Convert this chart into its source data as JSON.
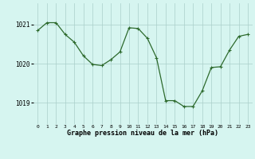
{
  "x": [
    0,
    1,
    2,
    3,
    4,
    5,
    6,
    7,
    8,
    9,
    10,
    11,
    12,
    13,
    14,
    15,
    16,
    17,
    18,
    19,
    20,
    21,
    22,
    23
  ],
  "y": [
    1020.85,
    1021.05,
    1021.05,
    1020.75,
    1020.55,
    1020.2,
    1019.98,
    1019.95,
    1020.1,
    1020.3,
    1020.92,
    1020.9,
    1020.65,
    1020.15,
    1019.05,
    1019.05,
    1018.9,
    1018.9,
    1019.3,
    1019.9,
    1019.92,
    1020.35,
    1020.7,
    1020.75
  ],
  "line_color": "#2d6a2d",
  "marker": "+",
  "marker_size": 3,
  "marker_lw": 0.8,
  "line_width": 0.9,
  "bg_color": "#d6f5f0",
  "grid_color": "#aacfca",
  "xlabel": "Graphe pression niveau de la mer (hPa)",
  "xlabel_fontsize": 6.0,
  "ytick_labels": [
    "1019",
    "1020",
    "1021"
  ],
  "ytick_values": [
    1019,
    1020,
    1021
  ],
  "ytick_fontsize": 5.5,
  "xtick_fontsize": 4.5,
  "ylim": [
    1018.45,
    1021.55
  ],
  "xlim": [
    -0.5,
    23.5
  ]
}
